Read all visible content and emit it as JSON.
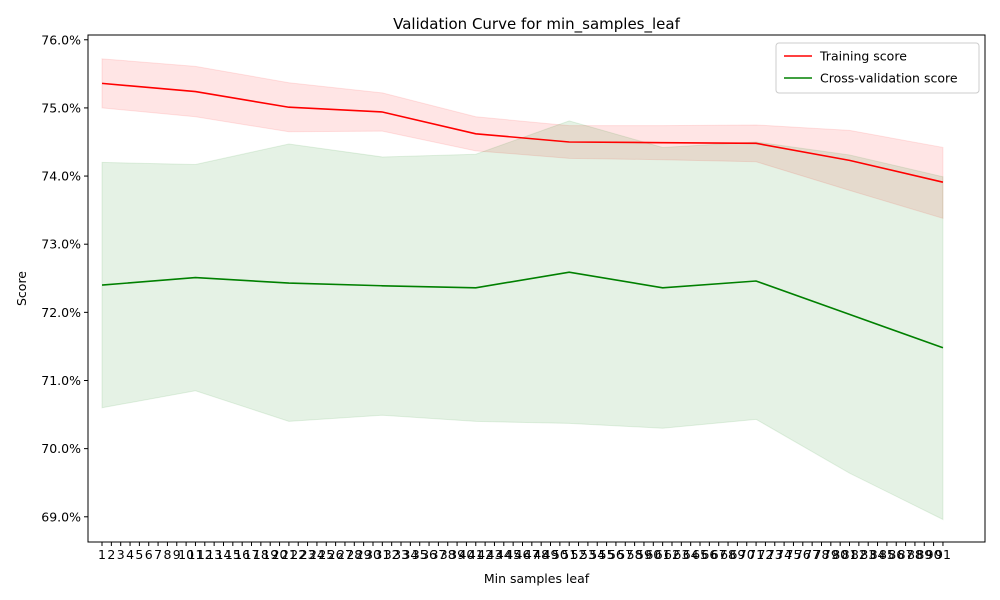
{
  "chart_data": {
    "type": "line",
    "title": "Validation Curve for min_samples_leaf",
    "xlabel": "Min samples leaf",
    "ylabel": "Score",
    "x_ticks": [
      1,
      2,
      3,
      4,
      5,
      6,
      7,
      8,
      9,
      10,
      11,
      12,
      13,
      14,
      15,
      16,
      17,
      18,
      19,
      20,
      21,
      22,
      23,
      24,
      25,
      26,
      27,
      28,
      29,
      30,
      31,
      32,
      33,
      34,
      35,
      36,
      37,
      38,
      39,
      40,
      41,
      42,
      43,
      44,
      45,
      46,
      47,
      48,
      49,
      50,
      51,
      52,
      53,
      54,
      55,
      56,
      57,
      58,
      59,
      60,
      61,
      62,
      63,
      64,
      65,
      66,
      67,
      68,
      69,
      70,
      71,
      72,
      73,
      74,
      75,
      76,
      77,
      78,
      79,
      80,
      81,
      82,
      83,
      84,
      85,
      86,
      87,
      88,
      89,
      90,
      91
    ],
    "x": [
      1,
      11,
      21,
      31,
      41,
      51,
      61,
      71,
      81,
      91
    ],
    "xlim": [
      -0.5,
      95.5
    ],
    "ylim": [
      68.63,
      76.07
    ],
    "y_ticks": [
      69.0,
      70.0,
      71.0,
      72.0,
      73.0,
      74.0,
      75.0,
      76.0
    ],
    "y_tick_labels": [
      "69.0%",
      "70.0%",
      "71.0%",
      "72.0%",
      "73.0%",
      "74.0%",
      "75.0%",
      "76.0%"
    ],
    "grid": false,
    "legend_position": "top-right",
    "series": [
      {
        "name": "Training score",
        "color": "#ff0000",
        "fill_color": "#ff0000",
        "fill_opacity": 0.1,
        "values": [
          75.36,
          75.24,
          75.01,
          74.94,
          74.62,
          74.5,
          74.49,
          74.48,
          74.23,
          73.91
        ],
        "upper": [
          75.72,
          75.61,
          75.37,
          75.22,
          74.87,
          74.74,
          74.74,
          74.75,
          74.67,
          74.42
        ],
        "lower": [
          75.0,
          74.87,
          74.65,
          74.66,
          74.37,
          74.26,
          74.24,
          74.21,
          73.79,
          73.38
        ]
      },
      {
        "name": "Cross-validation score",
        "color": "#008000",
        "fill_color": "#008000",
        "fill_opacity": 0.1,
        "values": [
          72.4,
          72.51,
          72.43,
          72.39,
          72.36,
          72.59,
          72.36,
          72.46,
          71.97,
          71.48
        ],
        "upper": [
          74.2,
          74.17,
          74.47,
          74.28,
          74.32,
          74.81,
          74.42,
          74.5,
          74.31,
          73.99
        ],
        "lower": [
          70.6,
          70.85,
          70.4,
          70.49,
          70.4,
          70.37,
          70.3,
          70.43,
          69.64,
          68.96
        ]
      }
    ]
  }
}
